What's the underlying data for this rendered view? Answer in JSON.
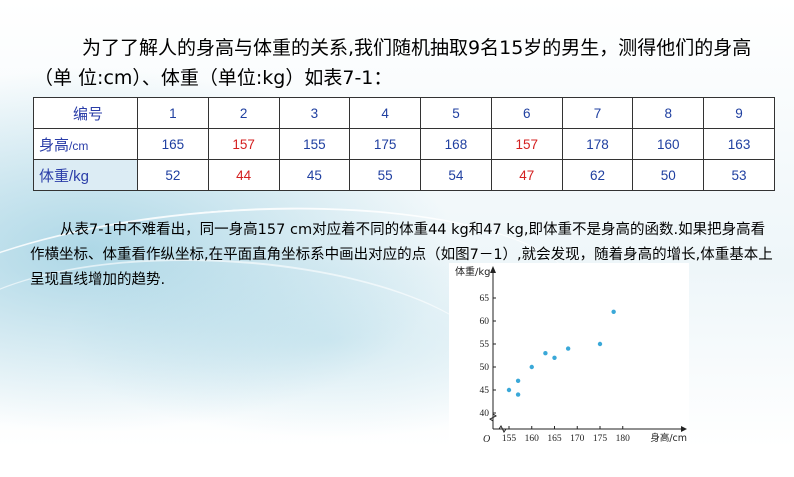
{
  "intro": {
    "text": "为了了解人的身高与体重的关系,我们随机抽取9名15岁的男生，测得他们的身高（单 位:cm）、体重（单位:kg）如表7-1："
  },
  "table": {
    "rows": [
      {
        "label": "编号",
        "values": [
          "1",
          "2",
          "3",
          "4",
          "5",
          "6",
          "7",
          "8",
          "9"
        ]
      },
      {
        "label": "身高/cm",
        "values": [
          "165",
          "157",
          "155",
          "175",
          "168",
          "157",
          "178",
          "160",
          "163"
        ]
      },
      {
        "label": "体重/kg",
        "values": [
          "52",
          "44",
          "45",
          "55",
          "54",
          "47",
          "62",
          "50",
          "53"
        ]
      }
    ],
    "colors": {
      "normal": "#1f3fa0",
      "highlight": "#d42020"
    }
  },
  "paragraph": {
    "text": "从表7-1中不难看出，同一身高157 cm对应着不同的体重44 kg和47 kg,即体重不是身高的函数.如果把身高看作横坐标、体重看作纵坐标,在平面直角坐标系中画出对应的点（如图7－1）,就会发现，随着身高的增长,体重基本上呈现直线增加的趋势."
  },
  "chart_data": {
    "type": "scatter",
    "ylabel": "体重/kg",
    "xlabel": "身高/cm",
    "origin_label": "O",
    "x_ticks": [
      155,
      160,
      165,
      170,
      175,
      180
    ],
    "y_ticks": [
      40,
      45,
      50,
      55,
      60,
      65
    ],
    "xlim": [
      152,
      182
    ],
    "ylim": [
      38,
      67
    ],
    "points": [
      {
        "x": 165,
        "y": 52
      },
      {
        "x": 157,
        "y": 44
      },
      {
        "x": 155,
        "y": 45
      },
      {
        "x": 175,
        "y": 55
      },
      {
        "x": 168,
        "y": 54
      },
      {
        "x": 157,
        "y": 47
      },
      {
        "x": 178,
        "y": 62
      },
      {
        "x": 160,
        "y": 50
      },
      {
        "x": 163,
        "y": 53
      }
    ],
    "point_color": "#3aa8d8",
    "grid": false
  }
}
